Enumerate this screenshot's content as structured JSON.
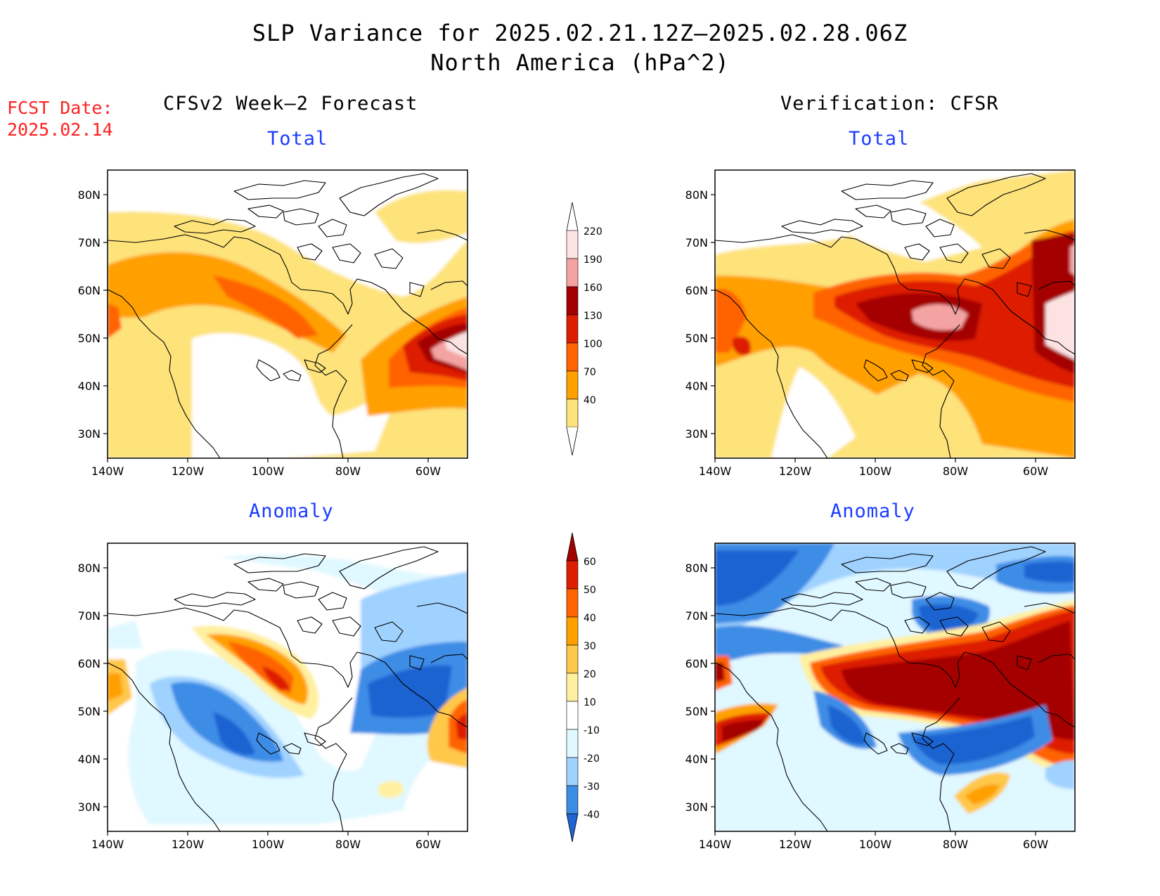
{
  "title": {
    "line1": "SLP Variance for 2025.02.21.12Z–2025.02.28.06Z",
    "line2": "North America (hPa^2)"
  },
  "fcst_date": {
    "label": "FCST Date:",
    "value": "2025.02.14"
  },
  "columns": {
    "left": "CFSv2 Week–2 Forecast",
    "right": "Verification: CFSR"
  },
  "subtitles": {
    "total": "Total",
    "anomaly": "Anomaly"
  },
  "axes": {
    "lat_labels": [
      "80N",
      "70N",
      "60N",
      "50N",
      "40N",
      "30N"
    ],
    "lon_labels": [
      "140W",
      "120W",
      "100W",
      "80W",
      "60W"
    ]
  },
  "colorbars": {
    "total": {
      "levels": [
        "220",
        "190",
        "160",
        "130",
        "100",
        "70",
        "40"
      ],
      "colors": [
        "#fde2e2",
        "#f4a3a3",
        "#a50000",
        "#dd1c00",
        "#ff6400",
        "#ffa000",
        "#fde37a"
      ]
    },
    "anomaly": {
      "levels": [
        "60",
        "50",
        "40",
        "30",
        "20",
        "10",
        "-10",
        "-20",
        "-30",
        "-40"
      ],
      "colors": [
        "#a50000",
        "#dd1c00",
        "#ff6400",
        "#ffa000",
        "#ffc84a",
        "#fff0a0",
        "#ffffff",
        "#e0f8ff",
        "#a0d2ff",
        "#3c8ce6",
        "#1e64d2"
      ]
    }
  }
}
